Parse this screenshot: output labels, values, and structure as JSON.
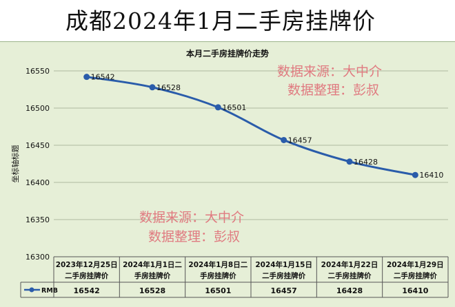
{
  "page_title": "成都2024年1月二手房挂牌价",
  "watermarks": [
    {
      "line1": "数据来源：大中介",
      "line2": "数据整理：彭叔"
    },
    {
      "line1": "数据来源：大中介",
      "line2": "数据整理：彭叔"
    }
  ],
  "chart_data": {
    "type": "line",
    "title": "本月二手房挂牌价走势",
    "ylabel": "坐标轴标题",
    "xlabel": "",
    "ylim": [
      16300,
      16550
    ],
    "yticks": [
      16300,
      16350,
      16400,
      16450,
      16500,
      16550
    ],
    "grid": true,
    "categories": [
      [
        "2023年12月25日",
        "二手房挂牌价"
      ],
      [
        "2024年1月1日二",
        "手房挂牌价"
      ],
      [
        "2024年1月8日二",
        "手房挂牌价"
      ],
      [
        "2024年1月15日",
        "二手房挂牌价"
      ],
      [
        "2024年1月22日",
        "二手房挂牌价"
      ],
      [
        "2024年1月29日",
        "二手房挂牌价"
      ]
    ],
    "series": [
      {
        "name": "RMB",
        "values": [
          16542,
          16528,
          16501,
          16457,
          16428,
          16410
        ]
      }
    ],
    "data_labels": [
      "16542",
      "16528",
      "16501",
      "16457",
      "16428",
      "16410"
    ],
    "colors": {
      "line": "#2a5caa",
      "marker": "#2a5caa",
      "grid": "#9aa88c",
      "watermark": "#e07a80",
      "background": "#e6efd7"
    }
  }
}
